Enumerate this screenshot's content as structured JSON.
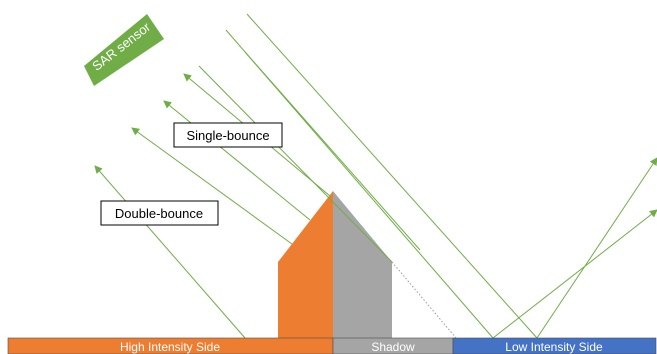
{
  "sensor": {
    "label": "SAR sensor",
    "color": "#70AD47"
  },
  "labels": {
    "single_bounce": "Single-bounce",
    "double_bounce": "Double-bounce"
  },
  "zones": {
    "high_intensity": "High Intensity Side",
    "shadow": "Shadow",
    "low_intensity": "Low Intensity Side"
  },
  "colors": {
    "ray": "#70AD47",
    "building_lit": "#ED7D31",
    "building_shadow": "#A5A5A5",
    "zone_high": "#ED7D31",
    "zone_shadow": "#A5A5A5",
    "zone_low": "#4472C4",
    "zone_text": "#ffffff"
  }
}
